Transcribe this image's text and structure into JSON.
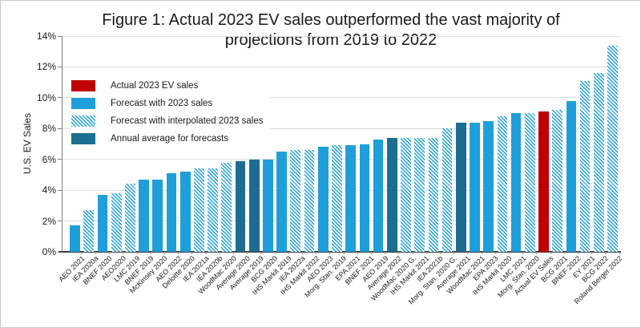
{
  "colors": {
    "actual": "#C00000",
    "forecast": "#1E9FDA",
    "average": "#1C6E90",
    "grid": "#DCDCDC",
    "axis": "#7F7F7F",
    "baseline": "#404040",
    "text": "#1A1A1A",
    "border": "#C8C8C8"
  },
  "chart_data": {
    "type": "bar",
    "title": "Figure 1: Actual 2023 EV sales outperformed the vast majority of projections from 2019 to 2022",
    "xlabel": "",
    "ylabel": "U.S. EV Sales",
    "ylim": [
      0,
      14
    ],
    "yticks": [
      "0%",
      "2%",
      "4%",
      "6%",
      "8%",
      "10%",
      "12%",
      "14%"
    ],
    "ytick_values": [
      0,
      2,
      4,
      6,
      8,
      10,
      12,
      14
    ],
    "grid": true,
    "legend_position": "inside upper left",
    "legend": [
      {
        "label": "Actual 2023 EV sales",
        "style": "actual"
      },
      {
        "label": "Forecast with 2023 sales",
        "style": "solid"
      },
      {
        "label": "Forecast with interpolated 2023 sales",
        "style": "hatched"
      },
      {
        "label": "Annual average for forecasts",
        "style": "average"
      }
    ],
    "categories": [
      "AEO 2021",
      "IEA 2020a",
      "BNEF 2020",
      "AEO2020",
      "LMC 2019",
      "BNEF 2019",
      "McKinsey 2020",
      "AEO 2022",
      "Deloitte 2020",
      "IEA 2021a",
      "IEA 2020b",
      "WoodMac 2020",
      "Average 2020",
      "Average 2019",
      "BCG 2020",
      "IHS Markit 2019",
      "IEA 2022a",
      "IHS Markit 2022",
      "AEO 2023",
      "Morg. Stan. 2019",
      "EPA 2021",
      "BNEF 2021",
      "AEO 2019",
      "Average 2022",
      "WoodMac 2020 G.",
      "IHS Markit 2021",
      "IEA 2021b",
      "Morg. Stan. 2020 G.",
      "Average 2021",
      "WoodMac 2021",
      "EPA 2023",
      "IHS Markit 2020",
      "LMC 2021",
      "Morg. Stan. 2020",
      "Actual EV Sales",
      "BCG 2021",
      "BNEF 2022",
      "EY 2021",
      "BCG 2022",
      "Roland Berger 2022"
    ],
    "values": [
      1.7,
      2.7,
      3.7,
      3.8,
      4.4,
      4.7,
      4.7,
      5.1,
      5.2,
      5.4,
      5.4,
      5.8,
      5.9,
      6.0,
      6.0,
      6.5,
      6.6,
      6.6,
      6.8,
      6.9,
      6.9,
      7.0,
      7.3,
      7.4,
      7.4,
      7.4,
      7.4,
      8.0,
      8.4,
      8.4,
      8.5,
      8.8,
      9.0,
      9.0,
      9.1,
      9.2,
      9.8,
      11.1,
      11.6,
      13.4
    ],
    "styles": [
      "solid",
      "hatched",
      "solid",
      "hatched",
      "hatched",
      "solid",
      "solid",
      "solid",
      "solid",
      "hatched",
      "hatched",
      "hatched",
      "average",
      "average",
      "solid",
      "solid",
      "hatched",
      "hatched",
      "solid",
      "hatched",
      "solid",
      "solid",
      "solid",
      "average",
      "hatched",
      "hatched",
      "hatched",
      "hatched",
      "average",
      "solid",
      "solid",
      "hatched",
      "solid",
      "hatched",
      "actual",
      "hatched",
      "solid",
      "hatched",
      "hatched",
      "hatched"
    ]
  }
}
